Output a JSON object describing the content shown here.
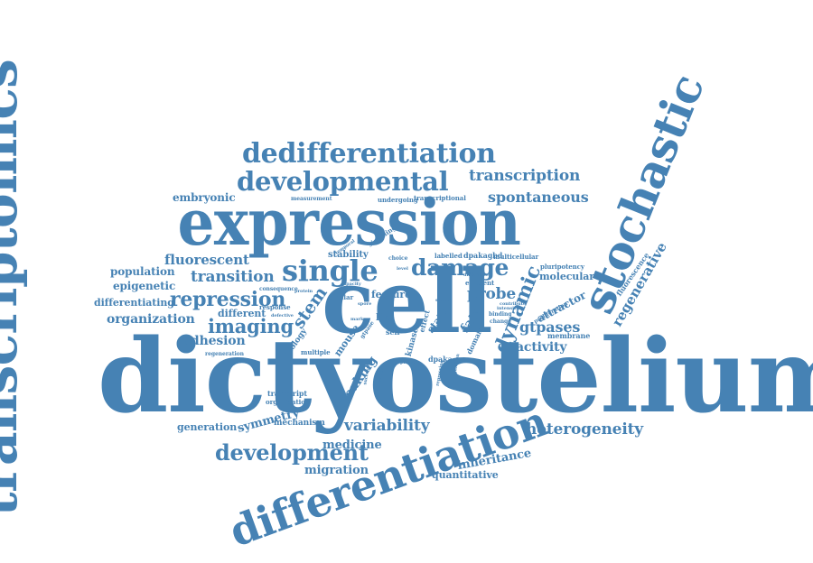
{
  "cloud": {
    "color": "#4682b4",
    "words": [
      {
        "id": "dictyostelium",
        "text": "dictyostelium"
      },
      {
        "id": "cell",
        "text": "cell"
      },
      {
        "id": "expression",
        "text": "expression"
      },
      {
        "id": "transcriptomics",
        "text": "transcriptomics"
      },
      {
        "id": "stochastic",
        "text": "stochastic"
      },
      {
        "id": "differentiation",
        "text": "differentiation"
      },
      {
        "id": "dedifferentiation",
        "text": "dedifferentiation"
      },
      {
        "id": "developmental",
        "text": "developmental"
      },
      {
        "id": "single",
        "text": "single"
      },
      {
        "id": "damage",
        "text": "damage"
      },
      {
        "id": "transcription",
        "text": "transcription"
      },
      {
        "id": "spontaneous",
        "text": "spontaneous"
      },
      {
        "id": "dynamic",
        "text": "dynamic"
      },
      {
        "id": "development",
        "text": "development"
      },
      {
        "id": "repression",
        "text": "repression"
      },
      {
        "id": "imaging",
        "text": "imaging"
      },
      {
        "id": "transition",
        "text": "transition"
      },
      {
        "id": "fluorescent",
        "text": "fluorescent"
      },
      {
        "id": "organization",
        "text": "organization"
      },
      {
        "id": "heterogeneity",
        "text": "heterogeneity"
      },
      {
        "id": "variability",
        "text": "variability"
      },
      {
        "id": "probe",
        "text": "probe"
      },
      {
        "id": "regenerative",
        "text": "regenerative"
      },
      {
        "id": "stem",
        "text": "stem"
      },
      {
        "id": "adhesion",
        "text": "adhesion"
      },
      {
        "id": "embryonic",
        "text": "embryonic"
      },
      {
        "id": "population",
        "text": "population"
      },
      {
        "id": "epigenetic",
        "text": "epigenetic"
      },
      {
        "id": "differentiating",
        "text": "differentiating"
      },
      {
        "id": "different",
        "text": "different"
      },
      {
        "id": "gtpases",
        "text": "gtpases"
      },
      {
        "id": "activity",
        "text": "activity"
      },
      {
        "id": "molecular",
        "text": "molecular"
      },
      {
        "id": "attractor",
        "text": "attractor"
      },
      {
        "id": "fate",
        "text": "fate"
      },
      {
        "id": "breaking",
        "text": "breaking"
      },
      {
        "id": "symmetry",
        "text": "symmetry"
      },
      {
        "id": "generation",
        "text": "generation"
      },
      {
        "id": "medicine",
        "text": "medicine"
      },
      {
        "id": "migration",
        "text": "migration"
      },
      {
        "id": "inheritance",
        "text": "inheritance"
      },
      {
        "id": "quantitative",
        "text": "quantitative"
      },
      {
        "id": "feature",
        "text": "feature"
      },
      {
        "id": "stability",
        "text": "stability"
      },
      {
        "id": "dpakagbd",
        "text": "dpakagbd"
      },
      {
        "id": "multicellular",
        "text": "multicellular"
      },
      {
        "id": "pluripotency",
        "text": "pluripotency"
      },
      {
        "id": "fluorescence",
        "text": "fluorescence"
      },
      {
        "id": "efficient",
        "text": "efficient"
      },
      {
        "id": "mechanism",
        "text": "mechanism"
      },
      {
        "id": "membrane",
        "text": "membrane"
      },
      {
        "id": "transcript",
        "text": "transcript"
      },
      {
        "id": "organisation",
        "text": "organisation"
      },
      {
        "id": "regeneration",
        "text": "regeneration"
      },
      {
        "id": "consequence",
        "text": "consequence"
      },
      {
        "id": "response",
        "text": "response"
      },
      {
        "id": "similar",
        "text": "similar"
      },
      {
        "id": "live",
        "text": "live"
      },
      {
        "id": "self",
        "text": "self"
      },
      {
        "id": "mouse",
        "text": "mouse"
      },
      {
        "id": "biology",
        "text": "biology"
      },
      {
        "id": "multiple",
        "text": "multiple"
      },
      {
        "id": "dpaka",
        "text": "dpaka"
      },
      {
        "id": "signaling",
        "text": "signaling"
      },
      {
        "id": "measurement",
        "text": "measurement"
      },
      {
        "id": "undergoing",
        "text": "undergoing"
      },
      {
        "id": "transcriptional",
        "text": "transcriptional"
      },
      {
        "id": "labelled",
        "text": "labelled"
      },
      {
        "id": "choice",
        "text": "choice"
      },
      {
        "id": "state",
        "text": "state"
      },
      {
        "id": "kinase",
        "text": "kinase"
      },
      {
        "id": "effect",
        "text": "effect"
      },
      {
        "id": "domain",
        "text": "domain"
      },
      {
        "id": "binding",
        "text": "binding"
      },
      {
        "id": "change",
        "text": "change"
      },
      {
        "id": "proliferation",
        "text": "proliferation"
      },
      {
        "id": "defective",
        "text": "defective"
      },
      {
        "id": "protein",
        "text": "protein"
      },
      {
        "id": "gtpase",
        "text": "gtpase"
      },
      {
        "id": "level",
        "text": "level"
      },
      {
        "id": "difference",
        "text": "difference"
      },
      {
        "id": "contribute",
        "text": "contribute"
      },
      {
        "id": "intensity",
        "text": "intensity"
      },
      {
        "id": "single2",
        "text": "single"
      },
      {
        "id": "prepare",
        "text": "prepare"
      },
      {
        "id": "spore",
        "text": "spore"
      },
      {
        "id": "marker",
        "text": "marker"
      },
      {
        "id": "activation",
        "text": "activation"
      },
      {
        "id": "successful",
        "text": "successful"
      },
      {
        "id": "regulation",
        "text": "regulation"
      },
      {
        "id": "repressing",
        "text": "repressing"
      },
      {
        "id": "temporal",
        "text": "temporal"
      },
      {
        "id": "capacity",
        "text": "capacity"
      }
    ]
  }
}
